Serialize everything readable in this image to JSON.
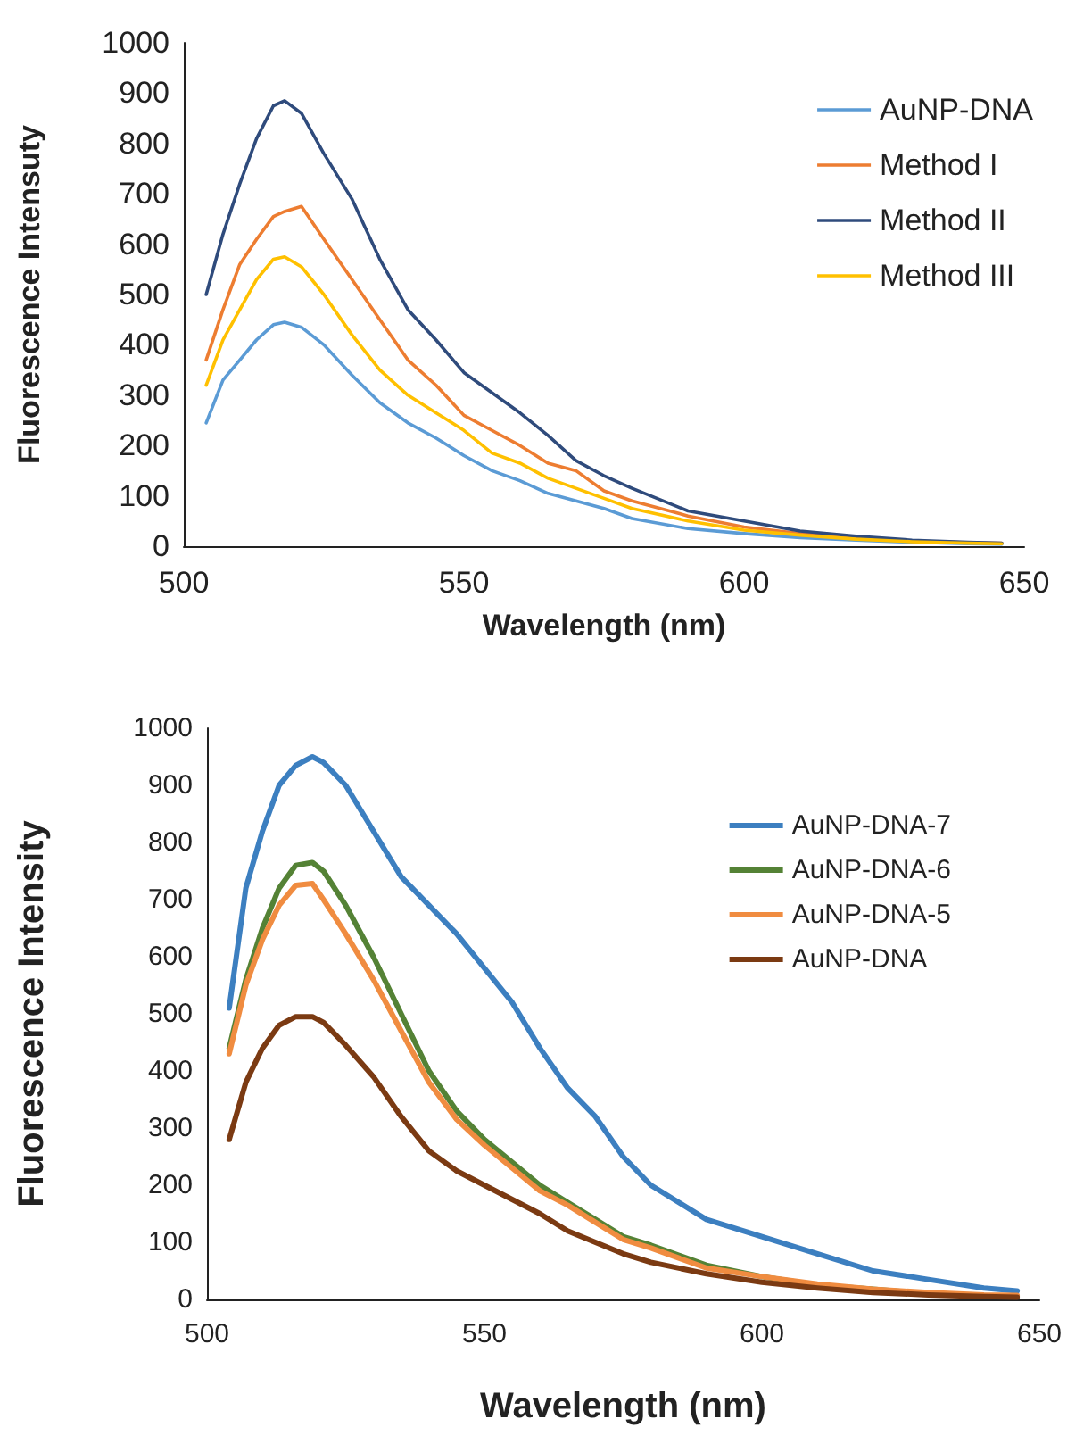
{
  "chart_data": [
    {
      "type": "line",
      "xlabel": "Wavelength (nm)",
      "ylabel": "Fluorescence Intensuty",
      "xlim": [
        500,
        650
      ],
      "xticks": [
        500,
        550,
        600,
        650
      ],
      "ylim": [
        0,
        1000
      ],
      "yticks": [
        0,
        100,
        200,
        300,
        400,
        500,
        600,
        700,
        800,
        900,
        1000
      ],
      "grid": false,
      "legend": "top right",
      "x": [
        504,
        507,
        510,
        513,
        516,
        518,
        521,
        525,
        530,
        535,
        540,
        545,
        550,
        555,
        560,
        565,
        570,
        575,
        580,
        590,
        600,
        610,
        620,
        630,
        640,
        646
      ],
      "series": [
        {
          "name": "AuNP-DNA",
          "color": "#5b9bd5",
          "values": [
            245,
            330,
            370,
            410,
            440,
            445,
            435,
            400,
            340,
            285,
            245,
            215,
            180,
            150,
            130,
            105,
            90,
            75,
            55,
            35,
            25,
            17,
            12,
            8,
            5,
            4
          ]
        },
        {
          "name": "Method I",
          "color": "#ed7d31",
          "values": [
            370,
            470,
            560,
            610,
            655,
            665,
            675,
            610,
            530,
            450,
            370,
            320,
            260,
            230,
            200,
            165,
            150,
            110,
            90,
            60,
            38,
            25,
            17,
            10,
            7,
            6
          ]
        },
        {
          "name": "Method II",
          "color": "#2f4b7c",
          "values": [
            500,
            620,
            720,
            810,
            875,
            885,
            860,
            780,
            690,
            570,
            470,
            410,
            345,
            305,
            265,
            220,
            170,
            140,
            115,
            70,
            50,
            30,
            20,
            12,
            8,
            6
          ]
        },
        {
          "name": "Method III",
          "color": "#ffc000",
          "values": [
            320,
            410,
            470,
            530,
            570,
            575,
            555,
            500,
            420,
            350,
            300,
            265,
            230,
            185,
            165,
            135,
            115,
            95,
            75,
            50,
            32,
            22,
            14,
            9,
            6,
            5
          ]
        }
      ]
    },
    {
      "type": "line",
      "xlabel": "Wavelength (nm)",
      "ylabel": "Fluorescence Intensity",
      "xlim": [
        500,
        650
      ],
      "xticks": [
        500,
        550,
        600,
        650
      ],
      "ylim": [
        0,
        1000
      ],
      "yticks": [
        0,
        100,
        200,
        300,
        400,
        500,
        600,
        700,
        800,
        900,
        1000
      ],
      "grid": false,
      "legend": "top right",
      "x": [
        504,
        507,
        510,
        513,
        516,
        519,
        521,
        525,
        530,
        535,
        540,
        545,
        550,
        555,
        560,
        565,
        570,
        575,
        580,
        590,
        600,
        610,
        620,
        630,
        640,
        646
      ],
      "series": [
        {
          "name": "AuNP-DNA-7",
          "color": "#3c7fc0",
          "values": [
            510,
            720,
            820,
            900,
            935,
            950,
            940,
            900,
            820,
            740,
            690,
            640,
            580,
            520,
            440,
            370,
            320,
            250,
            200,
            140,
            110,
            80,
            50,
            35,
            20,
            15
          ]
        },
        {
          "name": "AuNP-DNA-6",
          "color": "#548235",
          "values": [
            440,
            560,
            650,
            720,
            760,
            765,
            750,
            690,
            600,
            500,
            400,
            330,
            280,
            240,
            200,
            170,
            140,
            110,
            95,
            60,
            40,
            25,
            18,
            10,
            6,
            5
          ]
        },
        {
          "name": "AuNP-DNA-5",
          "color": "#f08c40",
          "values": [
            430,
            550,
            630,
            690,
            725,
            728,
            700,
            640,
            560,
            470,
            380,
            315,
            270,
            230,
            190,
            165,
            135,
            105,
            90,
            55,
            40,
            27,
            18,
            12,
            8,
            7
          ]
        },
        {
          "name": "AuNP-DNA",
          "color": "#7b3a12",
          "values": [
            280,
            380,
            440,
            480,
            495,
            495,
            485,
            445,
            390,
            320,
            260,
            225,
            200,
            175,
            150,
            120,
            100,
            80,
            65,
            45,
            30,
            20,
            12,
            8,
            5,
            4
          ]
        }
      ]
    }
  ]
}
